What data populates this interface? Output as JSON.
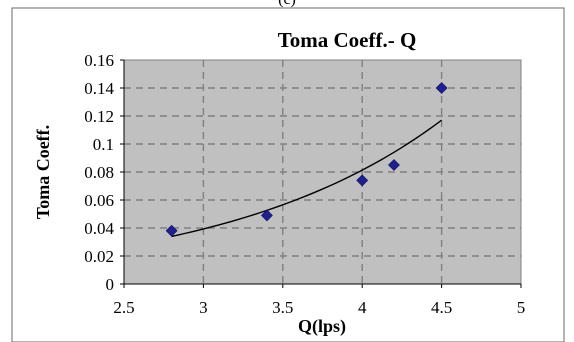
{
  "header_fragment": "(c)",
  "chart_data": {
    "type": "scatter",
    "title": "Toma Coeff.- Q",
    "xlabel": "Q(lps)",
    "ylabel": "Toma Coeff.",
    "xlim": [
      2.5,
      5
    ],
    "ylim": [
      0,
      0.16
    ],
    "x_ticks": [
      "2.5",
      "3",
      "3.5",
      "4",
      "4.5",
      "5"
    ],
    "y_ticks": [
      "0",
      "0.02",
      "0.04",
      "0.06",
      "0.08",
      "0.1",
      "0.12",
      "0.14",
      "0.16"
    ],
    "grid": true,
    "legend": "none",
    "points": [
      {
        "x": 2.8,
        "y": 0.038
      },
      {
        "x": 3.4,
        "y": 0.049
      },
      {
        "x": 4.0,
        "y": 0.074
      },
      {
        "x": 4.2,
        "y": 0.085
      },
      {
        "x": 4.5,
        "y": 0.14
      }
    ],
    "trendline": {
      "type": "exponential",
      "x": [
        2.8,
        4.5
      ],
      "y": [
        0.034,
        0.117
      ]
    },
    "colors": {
      "plot_area": "#c0c0c0",
      "marker": "#1f1f8f",
      "trendline": "#000000",
      "grid": "#808080"
    }
  }
}
